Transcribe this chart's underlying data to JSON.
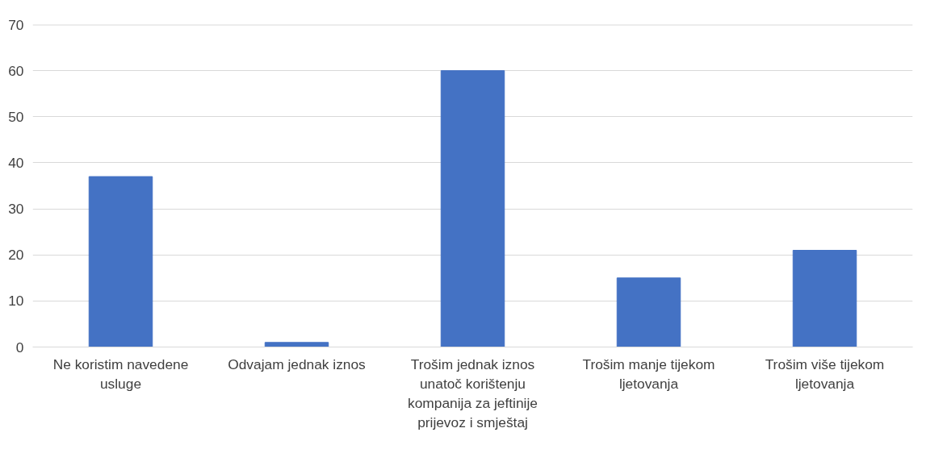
{
  "chart_data": {
    "type": "bar",
    "categories": [
      "Ne koristim navedene usluge",
      "Odvajam jednak iznos",
      "Trošim jednak iznos unatoč korištenju kompanija za jeftinije prijevoz i smještaj",
      "Trošim manje tijekom ljetovanja",
      "Trošim više tijekom ljetovanja"
    ],
    "values": [
      37,
      1,
      60,
      15,
      21
    ],
    "color": "#4472c4",
    "ylim": [
      0,
      70
    ],
    "yticks": [
      0,
      10,
      20,
      30,
      40,
      50,
      60,
      70
    ],
    "grid": "y"
  }
}
